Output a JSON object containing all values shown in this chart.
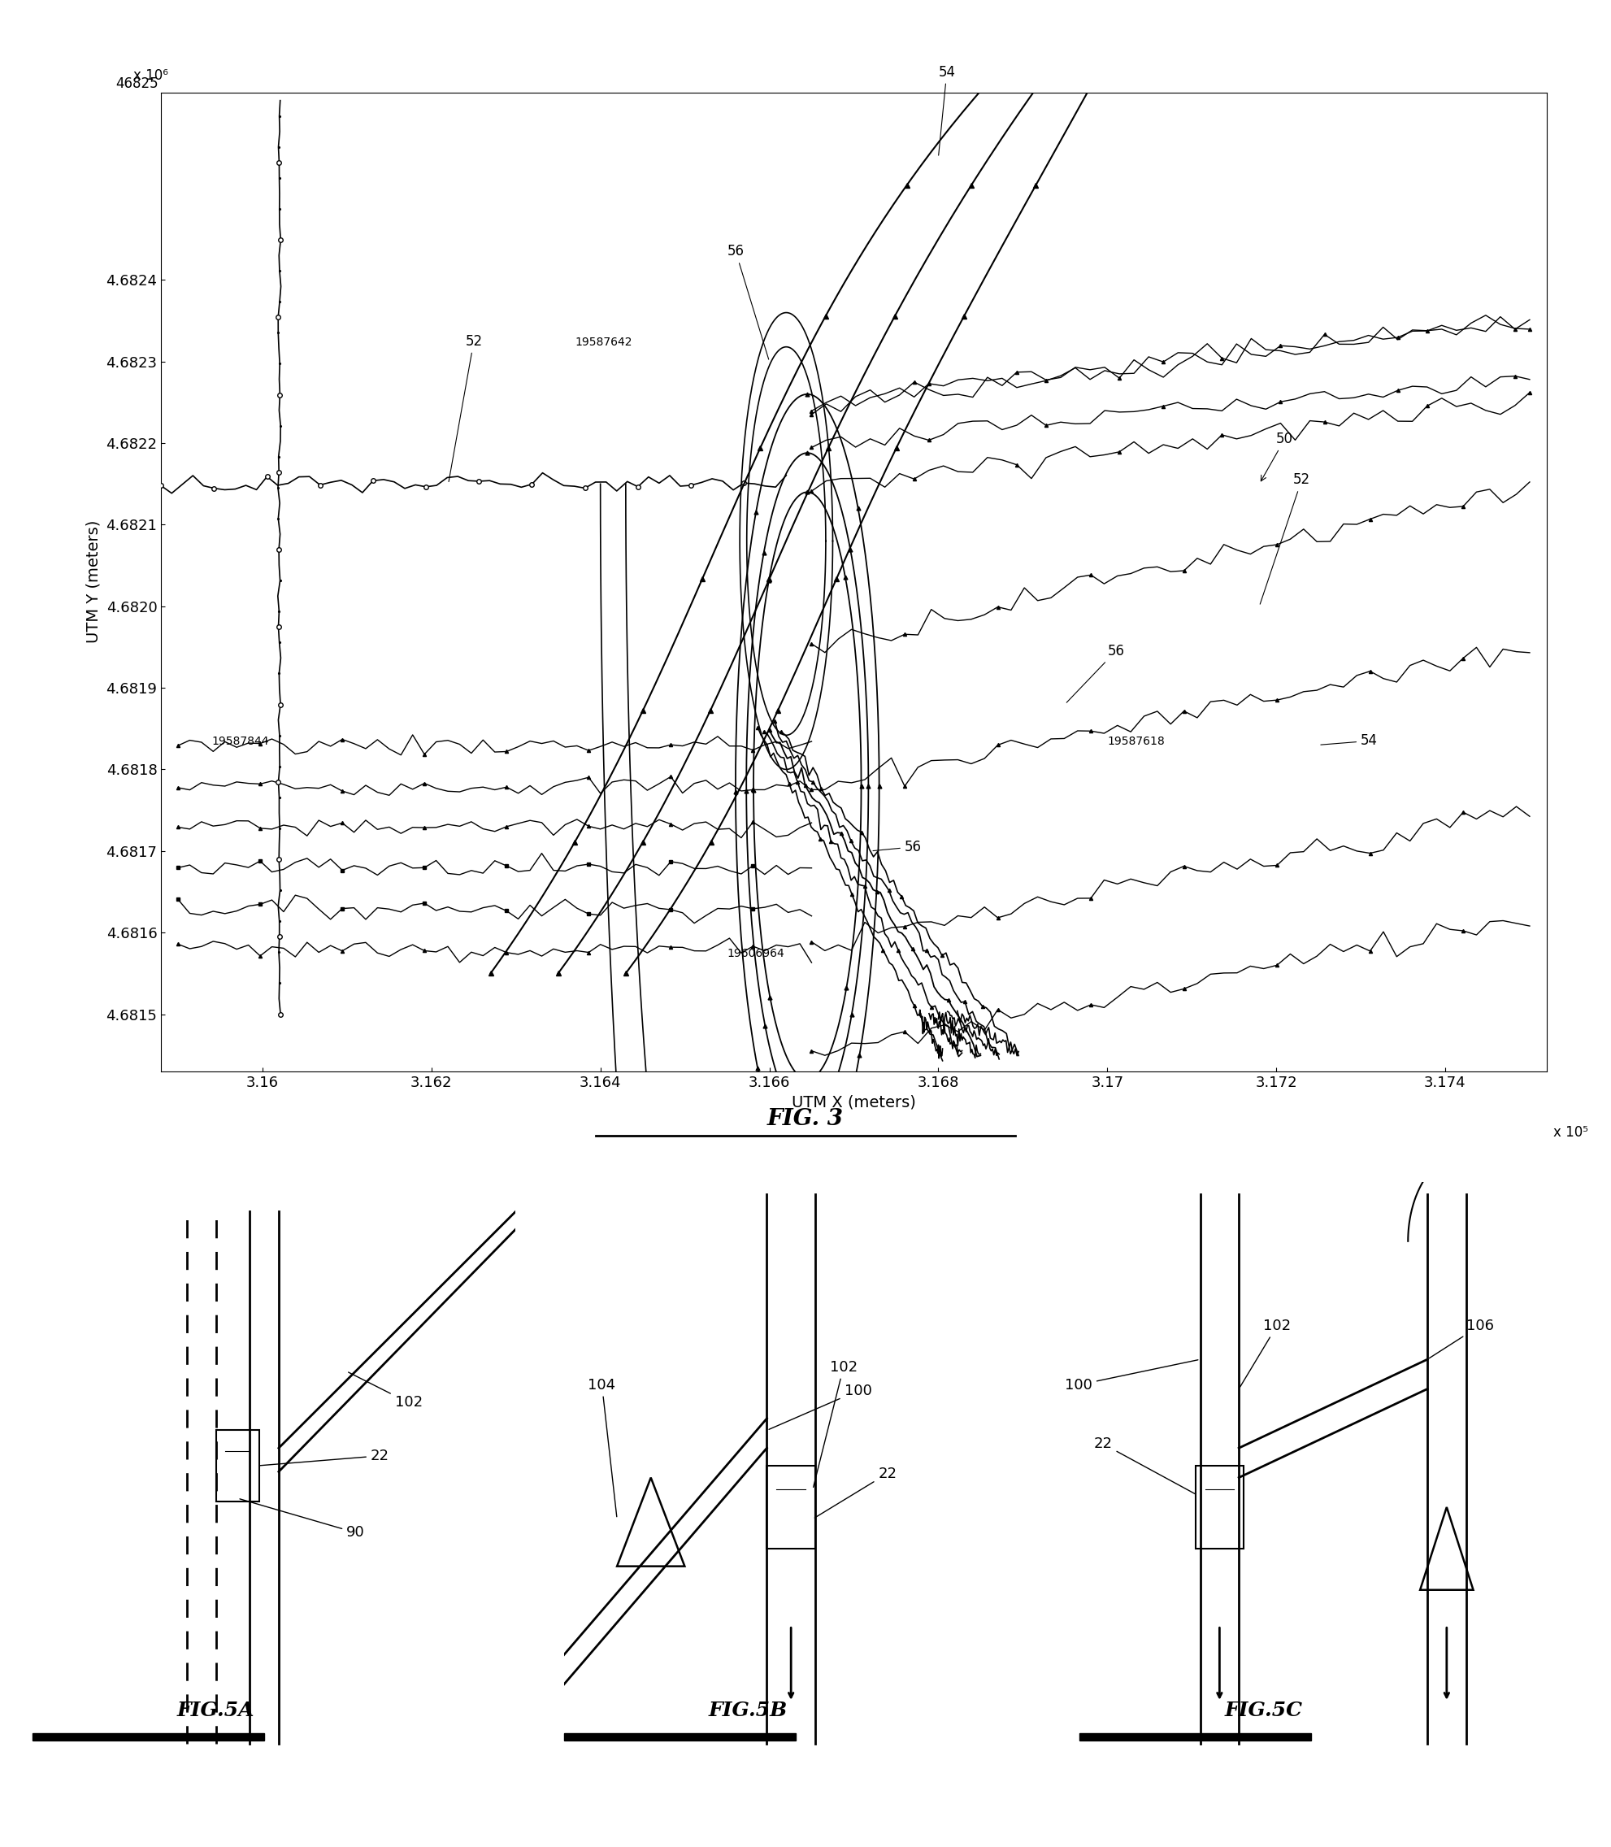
{
  "fig3": {
    "xlabel": "UTM X (meters)",
    "ylabel": "UTM Y (meters)",
    "xlim": [
      3.1588,
      3.1752
    ],
    "ylim": [
      4.68143,
      4.68263
    ],
    "xticks": [
      3.16,
      3.162,
      3.164,
      3.166,
      3.168,
      3.17,
      3.172,
      3.174
    ],
    "xtick_labels": [
      "3.16",
      "3.162",
      "3.164",
      "3.166",
      "3.168",
      "3.17",
      "3.172",
      "3.174"
    ],
    "yticks": [
      4.6815,
      4.6816,
      4.6817,
      4.6818,
      4.6819,
      4.682,
      4.6821,
      4.6822,
      4.6823,
      4.6824
    ],
    "ytick_labels": [
      "4.6815",
      "4.6816",
      "4.6817",
      "4.6818",
      "4.6819",
      "4.6820",
      "4.6821",
      "4.6822",
      "4.6823",
      "4.6824"
    ],
    "y_top_label": "46825",
    "x_scale": "x 10⁵",
    "y_scale": "x 10⁶"
  }
}
